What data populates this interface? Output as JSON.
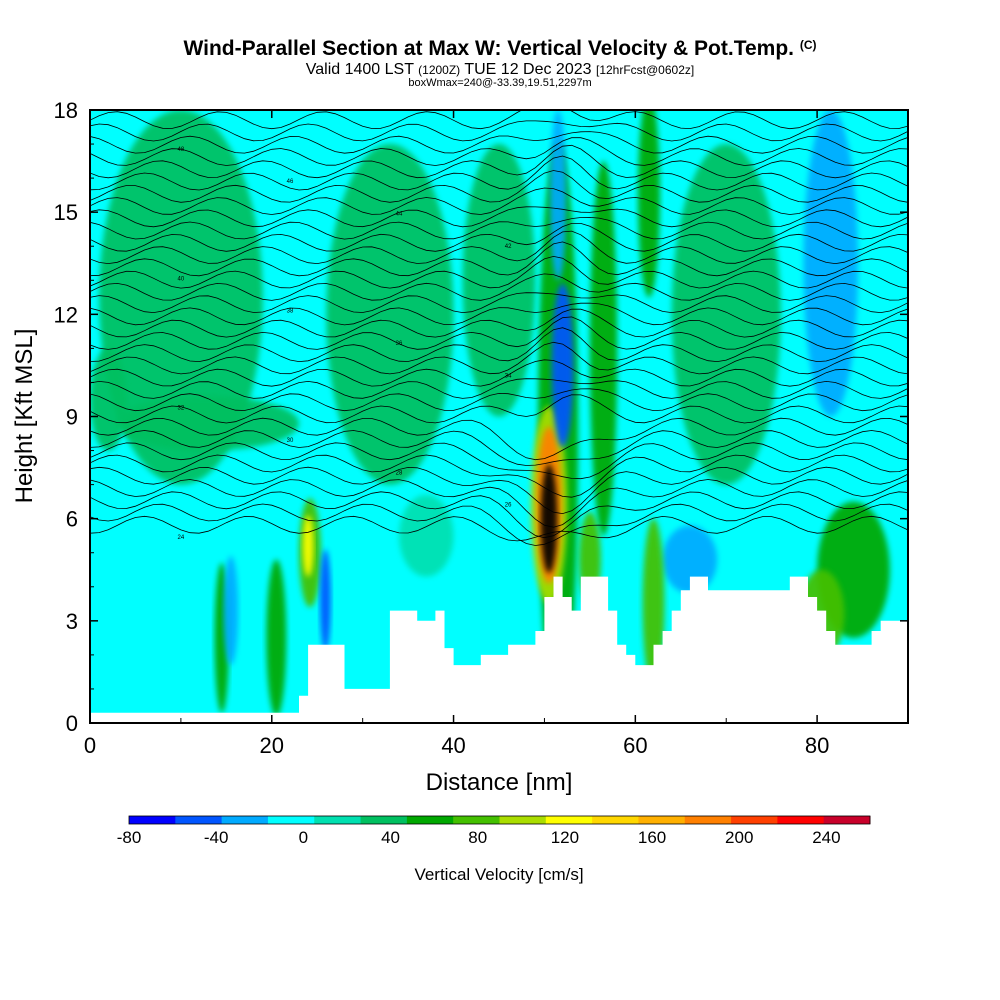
{
  "titles": {
    "main": "Wind-Parallel Section at Max W: Vertical Velocity & Pot.Temp.",
    "copyright": "(C)",
    "valid": "Valid 1400 LST",
    "valid_utc": "(1200Z)",
    "valid_date": "TUE 12 Dec 2023",
    "forecast": "[12hrFcst@0602z]",
    "box_info": "boxWmax=240@-33.39,19.51,2297m"
  },
  "colors": {
    "scale": [
      "#0000ff",
      "#0055ff",
      "#00aaff",
      "#00ffff",
      "#00e0b0",
      "#00c060",
      "#00a800",
      "#44c000",
      "#aadd00",
      "#ffff00",
      "#ffd700",
      "#ffb000",
      "#ff8000",
      "#ff4000",
      "#ff0000",
      "#c8002a"
    ]
  },
  "chart_data": {
    "type": "heatmap",
    "xlabel": "Distance [nm]",
    "ylabel": "Height [Kft MSL]",
    "xlim": [
      0,
      90
    ],
    "ylim": [
      0,
      18
    ],
    "x_ticks": [
      0,
      20,
      40,
      60,
      80
    ],
    "y_ticks": [
      0,
      3,
      6,
      9,
      12,
      15,
      18
    ],
    "colorbar": {
      "label": "Vertical Velocity [cm/s]",
      "ticks": [
        -80,
        -40,
        0,
        40,
        80,
        120,
        160,
        200,
        240
      ],
      "levels": [
        -80,
        -60,
        -40,
        -20,
        0,
        20,
        40,
        60,
        80,
        100,
        120,
        140,
        160,
        180,
        200,
        220,
        240,
        260
      ]
    },
    "terrain_height_kft": [
      [
        0,
        0.3
      ],
      [
        9,
        0.3
      ],
      [
        22,
        0.3
      ],
      [
        23,
        0.8
      ],
      [
        24,
        2.3
      ],
      [
        27,
        2.3
      ],
      [
        28,
        1.0
      ],
      [
        32,
        1.0
      ],
      [
        33,
        3.3
      ],
      [
        35,
        3.3
      ],
      [
        36,
        3.0
      ],
      [
        38,
        3.3
      ],
      [
        39,
        2.2
      ],
      [
        40,
        1.7
      ],
      [
        42,
        1.7
      ],
      [
        43,
        2.0
      ],
      [
        45,
        2.0
      ],
      [
        46,
        2.3
      ],
      [
        48,
        2.3
      ],
      [
        49,
        2.7
      ],
      [
        50,
        3.7
      ],
      [
        51,
        4.3
      ],
      [
        52,
        3.7
      ],
      [
        53,
        3.3
      ],
      [
        54,
        4.3
      ],
      [
        56,
        4.3
      ],
      [
        57,
        3.3
      ],
      [
        58,
        2.3
      ],
      [
        59,
        2.0
      ],
      [
        60,
        1.7
      ],
      [
        61,
        1.7
      ],
      [
        62,
        2.3
      ],
      [
        63,
        2.7
      ],
      [
        64,
        3.3
      ],
      [
        65,
        3.9
      ],
      [
        66,
        4.3
      ],
      [
        67,
        4.3
      ],
      [
        68,
        3.9
      ],
      [
        76,
        3.9
      ],
      [
        77,
        4.3
      ],
      [
        78,
        4.3
      ],
      [
        79,
        3.7
      ],
      [
        80,
        3.3
      ],
      [
        81,
        2.7
      ],
      [
        82,
        2.3
      ],
      [
        85,
        2.3
      ],
      [
        86,
        2.7
      ],
      [
        87,
        3.0
      ],
      [
        90,
        3.0
      ]
    ],
    "velocity_features": [
      {
        "x": 50.5,
        "y": 6.0,
        "rx": 0.9,
        "ry": 1.6,
        "value": 240
      },
      {
        "x": 50.5,
        "y": 6.4,
        "rx": 1.4,
        "ry": 2.3,
        "value": 160
      },
      {
        "x": 50.5,
        "y": 6.4,
        "rx": 2.0,
        "ry": 2.9,
        "value": 80
      },
      {
        "x": 51.5,
        "y": 8.5,
        "rx": 2.2,
        "ry": 8.6,
        "value": 40
      },
      {
        "x": 52.0,
        "y": 10.5,
        "rx": 1.2,
        "ry": 2.4,
        "value": -50
      },
      {
        "x": 51.5,
        "y": 15.5,
        "rx": 0.9,
        "ry": 2.5,
        "value": -40
      },
      {
        "x": 24.2,
        "y": 5.0,
        "rx": 1.2,
        "ry": 1.6,
        "value": 60
      },
      {
        "x": 24.0,
        "y": 5.2,
        "rx": 0.6,
        "ry": 0.9,
        "value": 100
      },
      {
        "x": 25.9,
        "y": 3.6,
        "rx": 0.6,
        "ry": 1.5,
        "value": -50
      },
      {
        "x": 15.5,
        "y": 3.3,
        "rx": 0.8,
        "ry": 1.6,
        "value": -30
      },
      {
        "x": 14.5,
        "y": 2.5,
        "rx": 0.8,
        "ry": 2.2,
        "value": 40
      },
      {
        "x": 20.5,
        "y": 2.5,
        "rx": 1.1,
        "ry": 2.3,
        "value": 40
      },
      {
        "x": 81.5,
        "y": 13.5,
        "rx": 3.0,
        "ry": 4.5,
        "value": -30
      },
      {
        "x": 80.5,
        "y": 3.2,
        "rx": 2.5,
        "ry": 1.3,
        "value": 60
      },
      {
        "x": 84.0,
        "y": 4.5,
        "rx": 4.0,
        "ry": 2.0,
        "value": 40
      },
      {
        "x": 66.0,
        "y": 4.8,
        "rx": 3.0,
        "ry": 1.0,
        "value": -30
      },
      {
        "x": 62.0,
        "y": 3.5,
        "rx": 1.2,
        "ry": 2.5,
        "value": 60
      },
      {
        "x": 55.0,
        "y": 4.8,
        "rx": 1.2,
        "ry": 1.4,
        "value": 60
      },
      {
        "x": 56.5,
        "y": 11.0,
        "rx": 1.5,
        "ry": 5.5,
        "value": 40
      },
      {
        "x": 61.5,
        "y": 15.5,
        "rx": 1.2,
        "ry": 3.0,
        "value": 40
      },
      {
        "x": 10.0,
        "y": 12.5,
        "rx": 9.0,
        "ry": 5.5,
        "value": 20
      },
      {
        "x": 33.0,
        "y": 12.0,
        "rx": 7.0,
        "ry": 5.0,
        "value": 20
      },
      {
        "x": 45.0,
        "y": 13.0,
        "rx": 4.0,
        "ry": 4.0,
        "value": 20
      },
      {
        "x": 70.0,
        "y": 12.0,
        "rx": 6.0,
        "ry": 5.0,
        "value": 20
      },
      {
        "x": 2.0,
        "y": 9.5,
        "rx": 2.0,
        "ry": 1.5,
        "value": 20
      },
      {
        "x": 37.0,
        "y": 5.5,
        "rx": 3.0,
        "ry": 1.2,
        "value": 10
      },
      {
        "x": 13.0,
        "y": 8.8,
        "rx": 10.0,
        "ry": 0.8,
        "value": 30
      }
    ],
    "isentrope_labels": [
      "48",
      "46",
      "44",
      "42",
      "40",
      "38",
      "36",
      "34",
      "32",
      "30",
      "28",
      "26",
      "24"
    ]
  }
}
